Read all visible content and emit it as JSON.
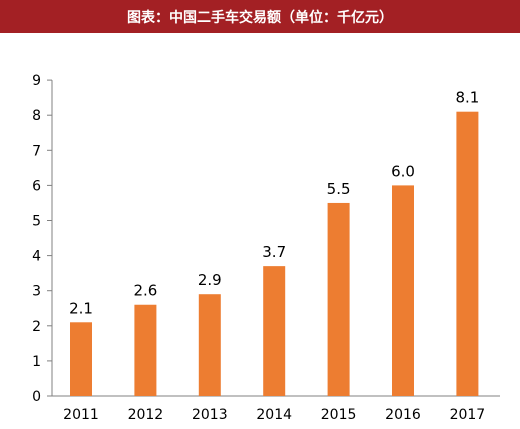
{
  "header": {
    "title": "图表：中国二手车交易额（单位：千亿元）",
    "bg_color": "#a32024"
  },
  "chart_data": {
    "type": "bar",
    "title": "图表：中国二手车交易额（单位：千亿元）",
    "categories": [
      "2011",
      "2012",
      "2013",
      "2014",
      "2015",
      "2016",
      "2017"
    ],
    "values": [
      2.1,
      2.6,
      2.9,
      3.7,
      5.5,
      6.0,
      8.1
    ],
    "data_labels": [
      "2.1",
      "2.6",
      "2.9",
      "3.7",
      "5.5",
      "6.0",
      "8.1"
    ],
    "xlabel": "",
    "ylabel": "",
    "ylim": [
      0,
      9
    ],
    "yticks": [
      0,
      1,
      2,
      3,
      4,
      5,
      6,
      7,
      8,
      9
    ],
    "grid": false,
    "legend": "none",
    "bar_color": "#ed7d31"
  }
}
